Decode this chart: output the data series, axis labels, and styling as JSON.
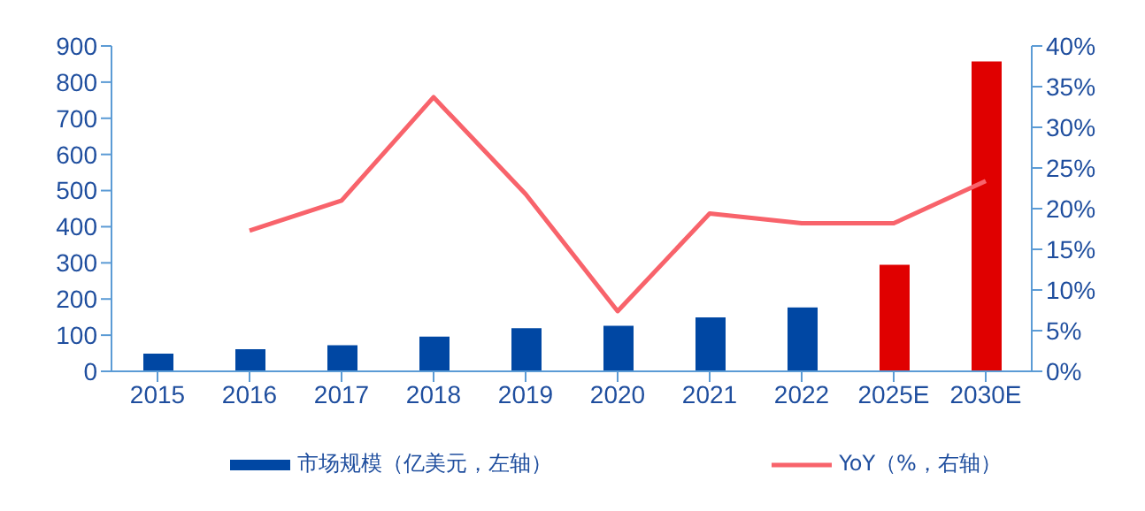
{
  "chart_data": {
    "type": "bar",
    "categories": [
      "2015",
      "2016",
      "2017",
      "2018",
      "2019",
      "2020",
      "2021",
      "2022",
      "2025E",
      "2030E"
    ],
    "series": [
      {
        "name": "市场规模（亿美元，左轴）",
        "color": "#0047a3",
        "colors": [
          "#0047a3",
          "#0047a3",
          "#0047a3",
          "#0047a3",
          "#0047a3",
          "#0047a3",
          "#0047a3",
          "#0047a3",
          "#e00000",
          "#e00000"
        ],
        "values": [
          49,
          61,
          72,
          96,
          119,
          126,
          149,
          177,
          295,
          857
        ]
      },
      {
        "name": "YoY（%，右轴）",
        "type": "line",
        "axis": "y2",
        "color": "#f8636b",
        "values": [
          null,
          17.3,
          21.0,
          33.7,
          21.8,
          7.4,
          19.4,
          18.2,
          18.2,
          23.4
        ]
      }
    ],
    "ylim": [
      0,
      900
    ],
    "yticks": [
      0,
      100,
      200,
      300,
      400,
      500,
      600,
      700,
      800,
      900
    ],
    "y2lim": [
      0,
      40
    ],
    "y2ticks": [
      {
        "value": 0,
        "label": "0%"
      },
      {
        "value": 5,
        "label": "5%"
      },
      {
        "value": 10,
        "label": "10%"
      },
      {
        "value": 15,
        "label": "15%"
      },
      {
        "value": 20,
        "label": "20%"
      },
      {
        "value": 25,
        "label": "25%"
      },
      {
        "value": 30,
        "label": "30%"
      },
      {
        "value": 35,
        "label": "35%"
      },
      {
        "value": 40,
        "label": "40%"
      }
    ],
    "grid": false,
    "legend": "bottom",
    "marker": "none",
    "line_style": "solid"
  }
}
